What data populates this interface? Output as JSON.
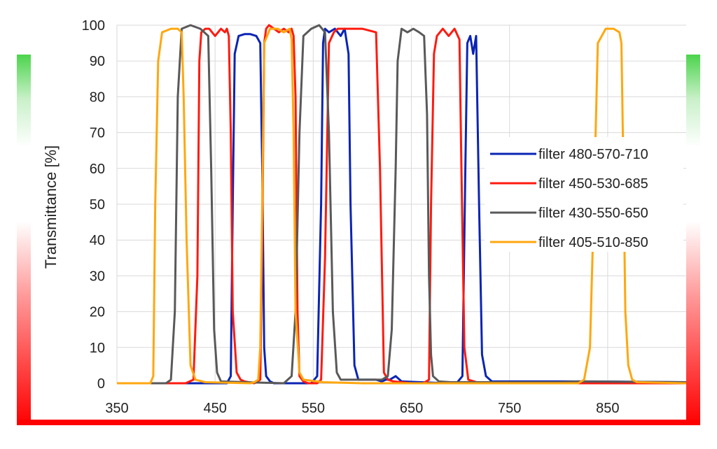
{
  "chart_data": {
    "type": "line",
    "title": "",
    "xlabel": "",
    "ylabel": "Transmittance [%]",
    "xlim": [
      350,
      930
    ],
    "ylim": [
      0,
      100
    ],
    "xticks": [
      350,
      450,
      550,
      650,
      750,
      850
    ],
    "yticks": [
      0,
      10,
      20,
      30,
      40,
      50,
      60,
      70,
      80,
      90,
      100
    ],
    "grid": true,
    "legend_position": "right",
    "series": [
      {
        "name": "filter 480-570-710",
        "color": "#0a24b4",
        "x": [
          350,
          462,
          466,
          468,
          470,
          474,
          480,
          486,
          492,
          496,
          498,
          500,
          502,
          506,
          510,
          548,
          554,
          558,
          560,
          562,
          566,
          572,
          578,
          582,
          586,
          588,
          592,
          596,
          600,
          614,
          620,
          624,
          628,
          634,
          640,
          688,
          696,
          702,
          705,
          707,
          710,
          713,
          716,
          719,
          722,
          726,
          732,
          740,
          800,
          830,
          930
        ],
        "y": [
          0,
          0,
          2,
          50,
          92,
          97,
          97.5,
          97.5,
          97,
          95,
          60,
          10,
          2,
          0.5,
          0,
          0,
          2,
          50,
          95,
          99,
          98,
          99,
          97,
          99,
          92,
          50,
          5,
          1,
          1,
          1,
          0.5,
          1,
          1,
          2,
          0.5,
          0,
          0,
          2,
          60,
          95,
          97,
          92,
          97,
          50,
          8,
          2,
          0.5,
          0.5,
          0.5,
          0.5,
          0.3
        ]
      },
      {
        "name": "filter 450-530-685",
        "color": "#ff1a0f",
        "x": [
          350,
          420,
          428,
          432,
          434,
          436,
          440,
          444,
          450,
          456,
          460,
          462,
          464,
          466,
          468,
          472,
          476,
          480,
          490,
          496,
          498,
          500,
          502,
          505,
          510,
          515,
          520,
          525,
          528,
          530,
          532,
          534,
          536,
          540,
          545,
          554,
          558,
          562,
          566,
          571,
          575,
          600,
          614,
          618,
          622,
          626,
          632,
          650,
          662,
          668,
          670,
          673,
          676,
          682,
          688,
          694,
          699,
          701,
          704,
          708,
          714,
          720,
          930
        ],
        "y": [
          0,
          0,
          1,
          30,
          90,
          98,
          99,
          99,
          97,
          99,
          98,
          99,
          97,
          70,
          20,
          3,
          1,
          0.5,
          0,
          1,
          40,
          95,
          99,
          100,
          99,
          98,
          99,
          98,
          99,
          97,
          80,
          20,
          2,
          0.5,
          0,
          0,
          1,
          35,
          95,
          98,
          99,
          99,
          98,
          60,
          3,
          1,
          0.5,
          0,
          0,
          1,
          50,
          92,
          97,
          99,
          97,
          99,
          96,
          60,
          10,
          1,
          0.5,
          0,
          0
        ]
      },
      {
        "name": "filter 430-550-650",
        "color": "#595959",
        "x": [
          350,
          400,
          405,
          409,
          412,
          416,
          425,
          435,
          443,
          446,
          449,
          452,
          456,
          520,
          528,
          532,
          536,
          540,
          548,
          556,
          562,
          566,
          570,
          574,
          578,
          620,
          626,
          630,
          634,
          636,
          640,
          646,
          652,
          658,
          663,
          666,
          668,
          670,
          672,
          678,
          690,
          800,
          820,
          930
        ],
        "y": [
          0,
          0,
          1,
          20,
          80,
          99,
          100,
          99,
          97,
          60,
          15,
          3,
          0.5,
          0,
          2,
          20,
          70,
          97,
          99,
          100,
          98,
          70,
          20,
          3,
          1,
          1,
          2,
          15,
          60,
          90,
          99,
          98,
          99,
          98,
          97,
          75,
          30,
          8,
          2,
          0.5,
          0.3,
          0.3,
          0.5,
          0.3
        ]
      },
      {
        "name": "filter 405-510-850",
        "color": "#ffa70f",
        "x": [
          350,
          384,
          387,
          389,
          392,
          396,
          405,
          412,
          416,
          418,
          421,
          425,
          430,
          440,
          486,
          490,
          494,
          496,
          498,
          500,
          506,
          514,
          520,
          526,
          528,
          530,
          532,
          536,
          540,
          560,
          600,
          820,
          826,
          832,
          836,
          840,
          848,
          856,
          862,
          864,
          866,
          868,
          871,
          875,
          880,
          930
        ],
        "y": [
          0,
          0,
          2,
          50,
          90,
          98,
          99,
          99,
          98,
          80,
          40,
          5,
          1,
          0.3,
          0,
          0.3,
          1,
          10,
          50,
          95,
          99,
          99,
          98,
          99,
          96,
          70,
          20,
          3,
          1,
          0.3,
          0,
          0,
          1,
          10,
          50,
          95,
          99,
          99,
          98,
          95,
          60,
          20,
          5,
          1,
          0.3,
          0
        ]
      }
    ]
  }
}
